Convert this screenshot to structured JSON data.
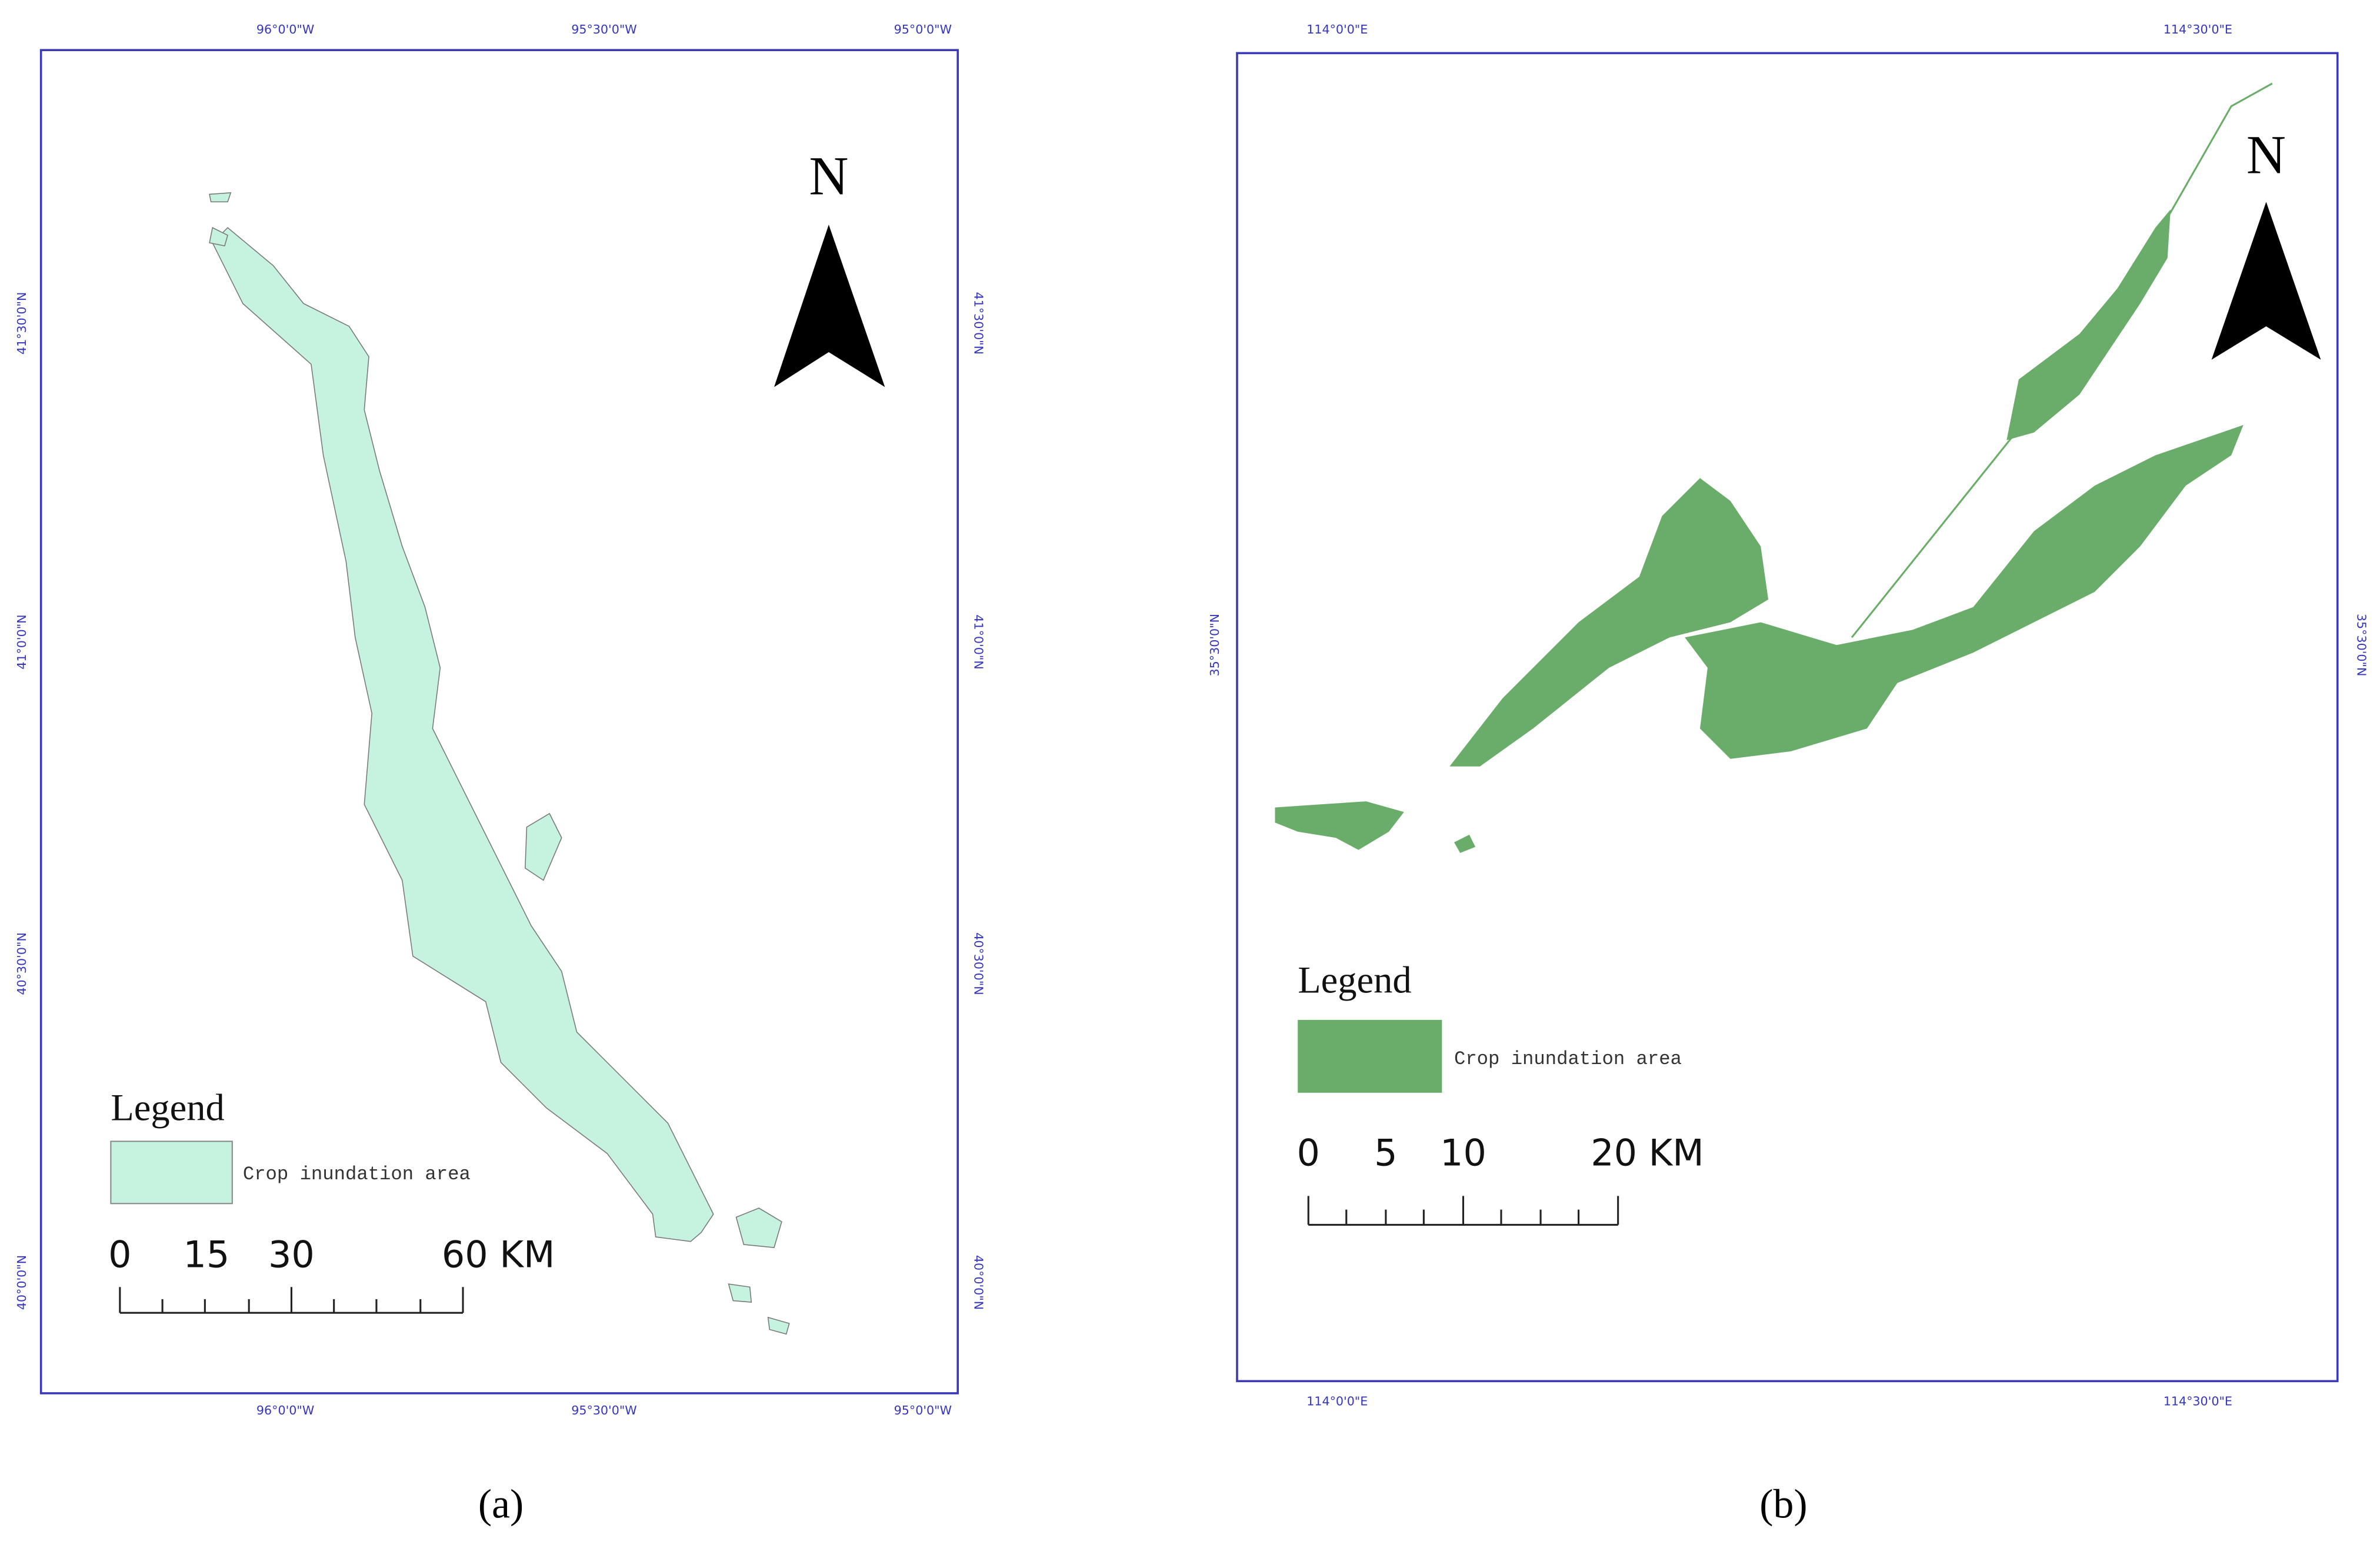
{
  "panels": [
    {
      "top_labels": [
        "96°0'0\"W",
        "95°30'0\"W",
        "95°0'0\"W"
      ],
      "bottom_labels": [
        "96°0'0\"W",
        "95°30'0\"W",
        "95°0'0\"W"
      ],
      "left_labels": [
        "41°30'0\"N",
        "41°0'0\"N",
        "40°30'0\"N",
        "40°0'0\"N"
      ],
      "right_labels": [
        "41°30'0\"N",
        "41°0'0\"N",
        "40°30'0\"N",
        "40°0'0\"N"
      ],
      "north": "N",
      "legend_title": "Legend",
      "legend_item": "Crop inundation area",
      "scale_labels": [
        "0",
        "15",
        "30",
        "60 KM"
      ],
      "caption": "(a)"
    },
    {
      "top_labels": [
        "114°0'0\"E",
        "114°30'0\"E"
      ],
      "bottom_labels": [
        "114°0'0\"E",
        "114°30'0\"E"
      ],
      "left_labels": [
        "35°30'0\"N"
      ],
      "right_labels": [
        "35°30'0\"N"
      ],
      "north": "N",
      "legend_title": "Legend",
      "legend_item": "Crop inundation area",
      "scale_labels": [
        "0",
        "5",
        "10",
        "20 KM"
      ],
      "caption": "(b)"
    }
  ]
}
